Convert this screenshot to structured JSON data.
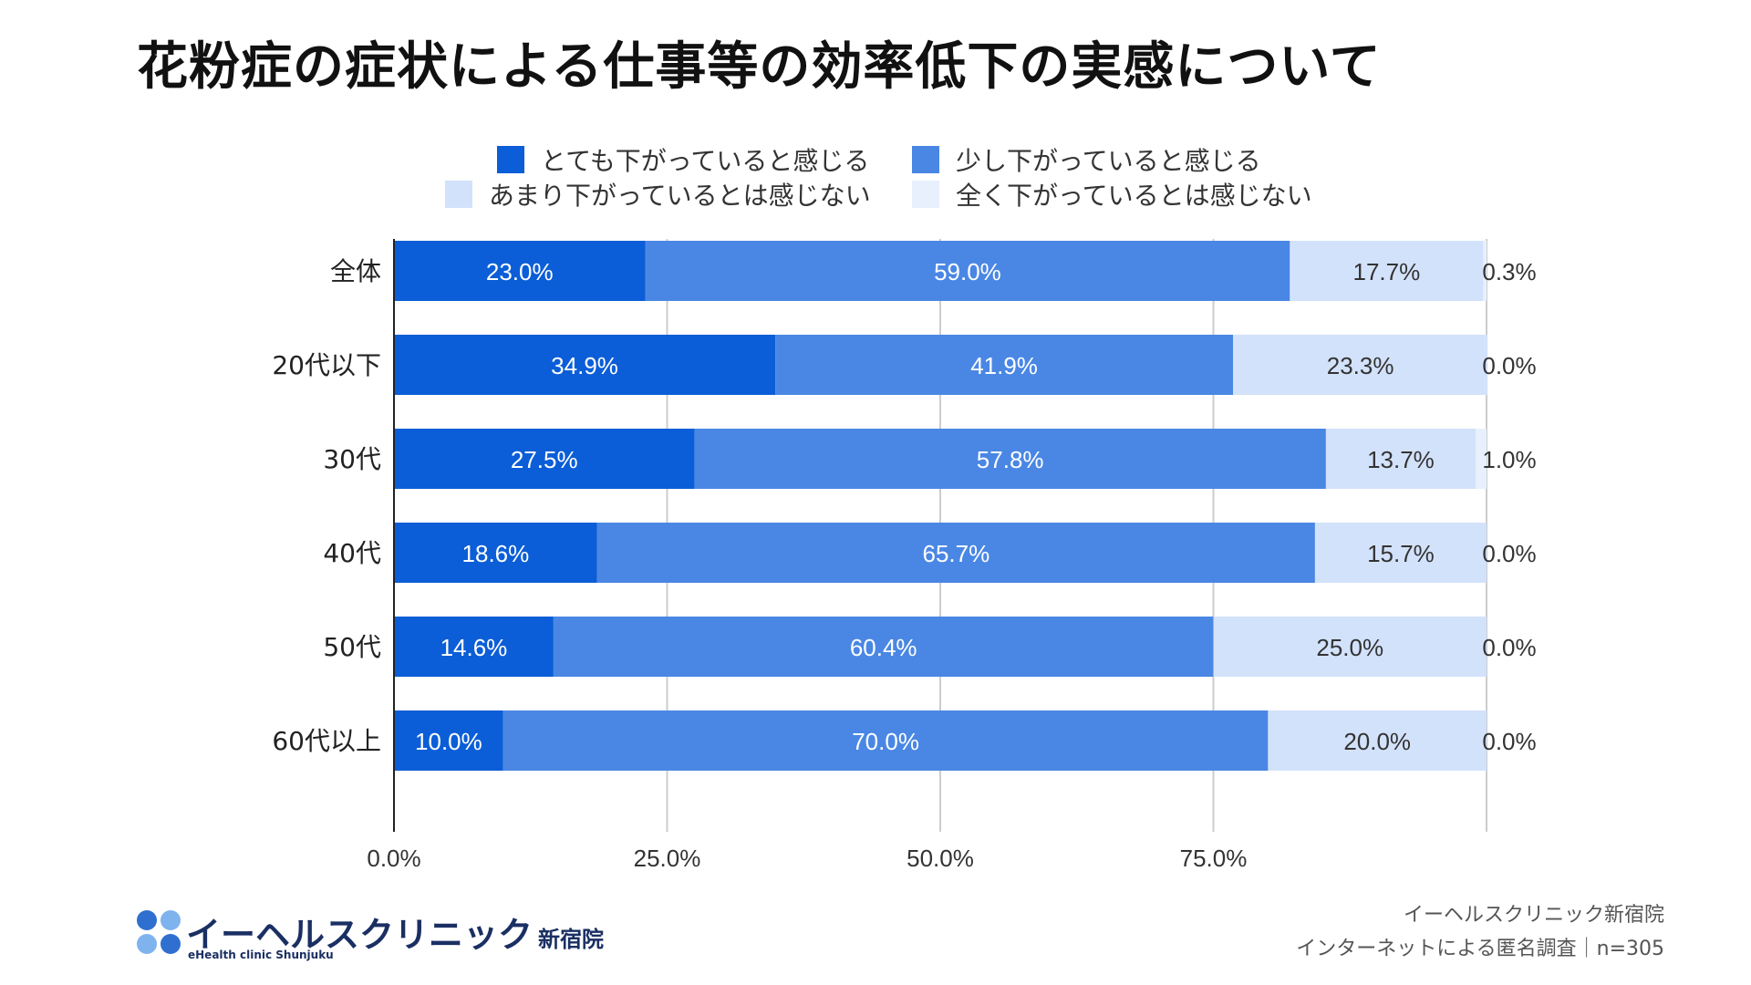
{
  "title": "花粉症の症状による仕事等の効率低下の実感について",
  "colors": [
    "#0b5ed7",
    "#4a87e4",
    "#d3e2fb",
    "#e8f0fd"
  ],
  "chart_data": {
    "type": "bar",
    "orientation": "horizontal",
    "stacked": true,
    "title": "花粉症の症状による仕事等の効率低下の実感について",
    "categories": [
      "全体",
      "20代以下",
      "30代",
      "40代",
      "50代",
      "60代以上"
    ],
    "series": [
      {
        "name": "とても下がっていると感じる",
        "values": [
          23.0,
          34.9,
          27.5,
          18.6,
          14.6,
          10.0
        ],
        "labels": [
          "23.0%",
          "34.9%",
          "27.5%",
          "18.6%",
          "14.6%",
          "10.0%"
        ]
      },
      {
        "name": "少し下がっていると感じる",
        "values": [
          59.0,
          41.9,
          57.8,
          65.7,
          60.4,
          70.0
        ],
        "labels": [
          "59.0%",
          "41.9%",
          "57.8%",
          "65.7%",
          "60.4%",
          "70.0%"
        ]
      },
      {
        "name": "あまり下がっているとは感じない",
        "values": [
          17.7,
          23.3,
          13.7,
          15.7,
          25.0,
          20.0
        ],
        "labels": [
          "17.7%",
          "23.3%",
          "13.7%",
          "15.7%",
          "25.0%",
          "20.0%"
        ]
      },
      {
        "name": "全く下がっているとは感じない",
        "values": [
          0.3,
          0.0,
          1.0,
          0.0,
          0.0,
          0.0
        ],
        "labels": [
          "0.3%",
          "0.0%",
          "1.0%",
          "0.0%",
          "0.0%",
          "0.0%"
        ]
      }
    ],
    "xlim": [
      0,
      100
    ],
    "x_ticks": [
      "0.0%",
      "25.0%",
      "50.0%",
      "75.0%"
    ],
    "grid": true,
    "legend_position": "top"
  },
  "logo": {
    "name": "イーヘルスクリニック",
    "branch": "新宿院",
    "sub": "eHealth clinic Shunjuku"
  },
  "source": {
    "line1": "イーヘルスクリニック新宿院",
    "line2": "インターネットによる匿名調査｜n=305"
  }
}
